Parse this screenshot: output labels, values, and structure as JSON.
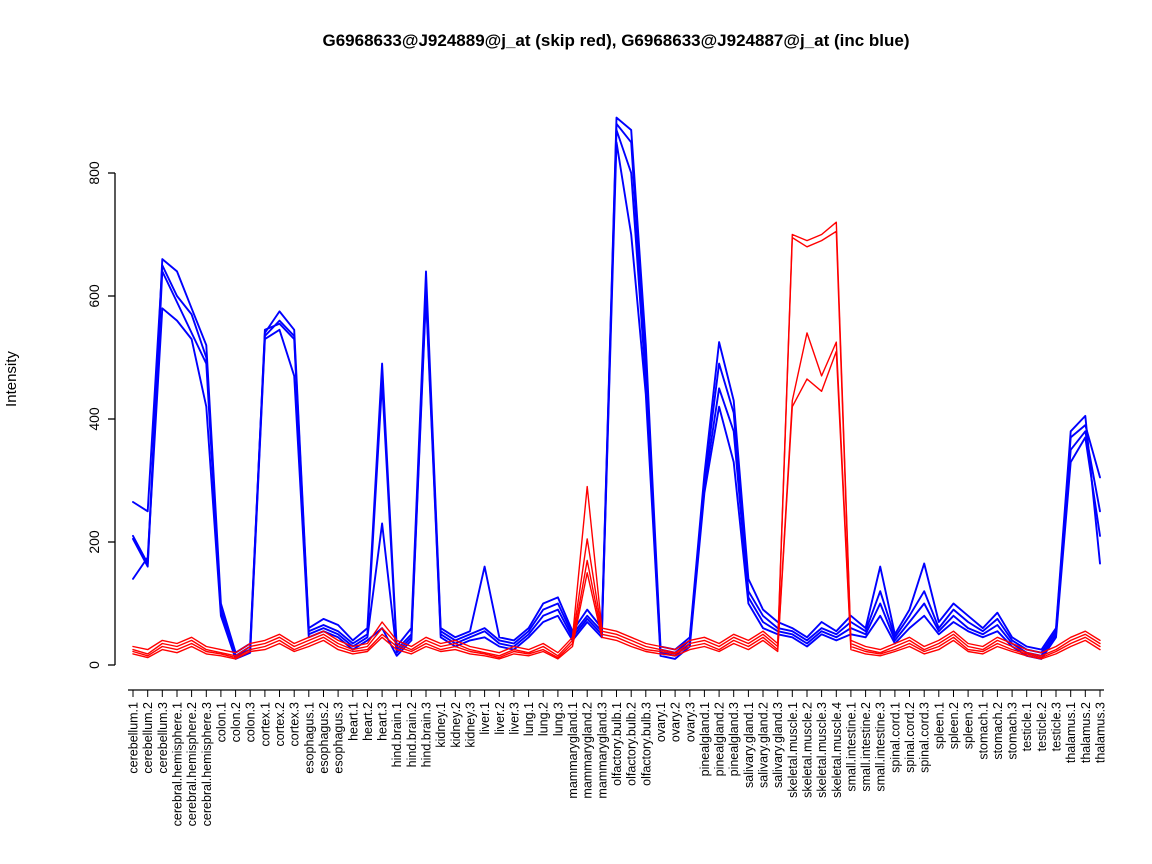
{
  "chart_data": {
    "type": "line",
    "title": "G6968633@J924889@j_at (skip red), G6968633@J924887@j_at (inc blue)",
    "ylabel": "Intensity",
    "xlabel": "",
    "ylim": [
      0,
      900
    ],
    "yticks": [
      0,
      200,
      400,
      600,
      800
    ],
    "legend": "none",
    "grid": false,
    "colors": {
      "inc": "#0000ff",
      "skip": "#ff0000"
    },
    "categories": [
      "cerebellum.1",
      "cerebellum.2",
      "cerebellum.3",
      "cerebral.hemisphere.1",
      "cerebral.hemisphere.2",
      "cerebral.hemisphere.3",
      "colon.1",
      "colon.2",
      "colon.3",
      "cortex.1",
      "cortex.2",
      "cortex.3",
      "esophagus.1",
      "esophagus.2",
      "esophagus.3",
      "heart.1",
      "heart.2",
      "heart.3",
      "hind.brain.1",
      "hind.brain.2",
      "hind.brain.3",
      "kidney.1",
      "kidney.2",
      "kidney.3",
      "liver.1",
      "liver.2",
      "liver.3",
      "lung.1",
      "lung.2",
      "lung.3",
      "mammarygland.1",
      "mammarygland.2",
      "mammarygland.3",
      "olfactory.bulb.1",
      "olfactory.bulb.2",
      "olfactory.bulb.3",
      "ovary.1",
      "ovary.2",
      "ovary.3",
      "pinealgland.1",
      "pinealgland.2",
      "pinealgland.3",
      "salivary.gland.1",
      "salivary.gland.2",
      "salivary.gland.3",
      "skeletal.muscle.1",
      "skeletal.muscle.2",
      "skeletal.muscle.3",
      "skeletal.muscle.4",
      "small.intestine.1",
      "small.intestine.2",
      "small.intestine.3",
      "spinal.cord.1",
      "spinal.cord.2",
      "spinal.cord.3",
      "spleen.1",
      "spleen.2",
      "spleen.3",
      "stomach.1",
      "stomach.2",
      "stomach.3",
      "testicle.1",
      "testicle.2",
      "testicle.3",
      "thalamus.1",
      "thalamus.2",
      "thalamus.3"
    ],
    "series": [
      {
        "name": "J924887_inc_blue_1",
        "color": "#0000ff",
        "values": [
          210,
          165,
          660,
          640,
          580,
          520,
          100,
          20,
          35,
          540,
          575,
          545,
          60,
          75,
          65,
          40,
          60,
          490,
          30,
          60,
          640,
          60,
          45,
          55,
          160,
          45,
          40,
          60,
          100,
          110,
          55,
          90,
          60,
          890,
          870,
          520,
          30,
          25,
          45,
          310,
          525,
          430,
          140,
          90,
          70,
          60,
          45,
          70,
          55,
          80,
          60,
          160,
          50,
          90,
          165,
          70,
          100,
          80,
          60,
          85,
          45,
          30,
          25,
          60,
          380,
          405,
          165
        ]
      },
      {
        "name": "J924887_inc_blue_2",
        "color": "#0000ff",
        "values": [
          265,
          250,
          650,
          600,
          570,
          500,
          90,
          15,
          30,
          535,
          560,
          535,
          55,
          65,
          55,
          35,
          50,
          460,
          25,
          50,
          620,
          55,
          40,
          50,
          60,
          40,
          35,
          55,
          90,
          100,
          50,
          80,
          55,
          880,
          850,
          480,
          25,
          20,
          40,
          300,
          490,
          410,
          120,
          80,
          60,
          55,
          40,
          60,
          50,
          70,
          55,
          120,
          45,
          80,
          120,
          60,
          90,
          70,
          55,
          75,
          40,
          25,
          20,
          55,
          370,
          390,
          305
        ]
      },
      {
        "name": "J924887_inc_blue_3",
        "color": "#0000ff",
        "values": [
          205,
          160,
          640,
          590,
          540,
          490,
          85,
          15,
          25,
          545,
          555,
          530,
          50,
          60,
          50,
          30,
          45,
          230,
          20,
          45,
          610,
          50,
          35,
          45,
          55,
          35,
          30,
          50,
          80,
          90,
          45,
          75,
          50,
          870,
          800,
          460,
          20,
          15,
          35,
          290,
          450,
          380,
          110,
          70,
          55,
          50,
          35,
          55,
          45,
          60,
          50,
          100,
          40,
          70,
          100,
          55,
          80,
          60,
          50,
          65,
          35,
          20,
          15,
          50,
          350,
          380,
          250
        ]
      },
      {
        "name": "J924887_inc_blue_4",
        "color": "#0000ff",
        "values": [
          140,
          175,
          580,
          560,
          530,
          420,
          80,
          10,
          20,
          530,
          545,
          470,
          45,
          55,
          45,
          25,
          40,
          60,
          15,
          40,
          600,
          45,
          30,
          40,
          45,
          30,
          25,
          45,
          70,
          80,
          40,
          70,
          45,
          850,
          700,
          440,
          15,
          10,
          30,
          280,
          420,
          330,
          100,
          60,
          50,
          45,
          30,
          50,
          40,
          50,
          45,
          80,
          35,
          60,
          80,
          50,
          70,
          55,
          45,
          55,
          30,
          15,
          10,
          45,
          330,
          370,
          210
        ]
      },
      {
        "name": "J924889_skip_red_1",
        "color": "#ff0000",
        "values": [
          30,
          25,
          40,
          35,
          45,
          30,
          25,
          20,
          35,
          40,
          50,
          35,
          45,
          55,
          40,
          30,
          35,
          70,
          40,
          30,
          45,
          35,
          40,
          30,
          25,
          20,
          30,
          25,
          35,
          20,
          45,
          290,
          60,
          55,
          45,
          35,
          30,
          25,
          40,
          45,
          35,
          50,
          40,
          55,
          35,
          700,
          690,
          700,
          720,
          40,
          30,
          25,
          35,
          45,
          30,
          40,
          55,
          35,
          30,
          45,
          35,
          25,
          20,
          30,
          45,
          55,
          40
        ]
      },
      {
        "name": "J924889_skip_red_2",
        "color": "#ff0000",
        "values": [
          25,
          18,
          35,
          30,
          40,
          25,
          20,
          15,
          30,
          35,
          45,
          30,
          40,
          50,
          35,
          25,
          30,
          60,
          35,
          25,
          40,
          30,
          35,
          25,
          20,
          15,
          25,
          20,
          30,
          15,
          40,
          205,
          55,
          50,
          40,
          30,
          25,
          20,
          35,
          40,
          30,
          45,
          35,
          50,
          30,
          695,
          680,
          690,
          705,
          35,
          25,
          20,
          30,
          40,
          25,
          35,
          50,
          30,
          25,
          40,
          30,
          20,
          15,
          25,
          40,
          50,
          35
        ]
      },
      {
        "name": "J924889_skip_red_3",
        "color": "#ff0000",
        "values": [
          22,
          15,
          30,
          25,
          35,
          22,
          18,
          12,
          25,
          30,
          40,
          25,
          35,
          45,
          30,
          22,
          25,
          50,
          30,
          22,
          35,
          25,
          30,
          22,
          18,
          12,
          22,
          18,
          25,
          12,
          35,
          170,
          50,
          45,
          35,
          25,
          22,
          18,
          30,
          35,
          25,
          40,
          30,
          45,
          25,
          430,
          540,
          470,
          525,
          30,
          22,
          18,
          25,
          35,
          22,
          30,
          45,
          25,
          22,
          35,
          25,
          18,
          12,
          22,
          35,
          45,
          30
        ]
      },
      {
        "name": "J924889_skip_red_4",
        "color": "#ff0000",
        "values": [
          18,
          12,
          25,
          20,
          30,
          18,
          15,
          10,
          22,
          25,
          35,
          22,
          30,
          40,
          25,
          18,
          22,
          45,
          25,
          18,
          30,
          22,
          25,
          18,
          15,
          10,
          18,
          15,
          22,
          10,
          30,
          150,
          45,
          40,
          30,
          22,
          18,
          15,
          25,
          30,
          22,
          35,
          25,
          40,
          22,
          420,
          465,
          445,
          510,
          25,
          18,
          15,
          22,
          30,
          18,
          25,
          40,
          22,
          18,
          30,
          22,
          15,
          10,
          18,
          30,
          40,
          25
        ]
      }
    ]
  }
}
